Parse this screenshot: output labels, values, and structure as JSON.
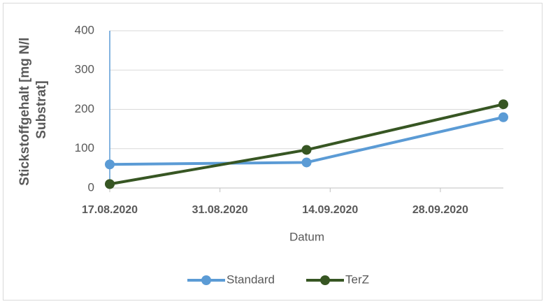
{
  "chart_data": {
    "type": "line",
    "x_label": "Datum",
    "y_label": [
      "Stickstoffgehalt [mg N/l",
      "Substrat]"
    ],
    "x": [
      "2020-08-17",
      "2020-09-11",
      "2020-10-06"
    ],
    "series": [
      {
        "name": "Standard",
        "color": "#5b9bd5",
        "values": [
          60,
          65,
          180
        ]
      },
      {
        "name": "TerZ",
        "color": "#375623",
        "values": [
          10,
          97,
          213
        ]
      }
    ],
    "xlim": [
      "2020-08-17",
      "2020-10-06"
    ],
    "xticks": [
      {
        "value": "2020-08-17",
        "label": "17.08.2020"
      },
      {
        "value": "2020-08-31",
        "label": "31.08.2020"
      },
      {
        "value": "2020-09-14",
        "label": "14.09.2020"
      },
      {
        "value": "2020-09-28",
        "label": "28.09.2020"
      }
    ],
    "ylim": [
      0,
      400
    ],
    "yticks": [
      0,
      100,
      200,
      300,
      400
    ],
    "grid": true,
    "legend": "bottom"
  }
}
